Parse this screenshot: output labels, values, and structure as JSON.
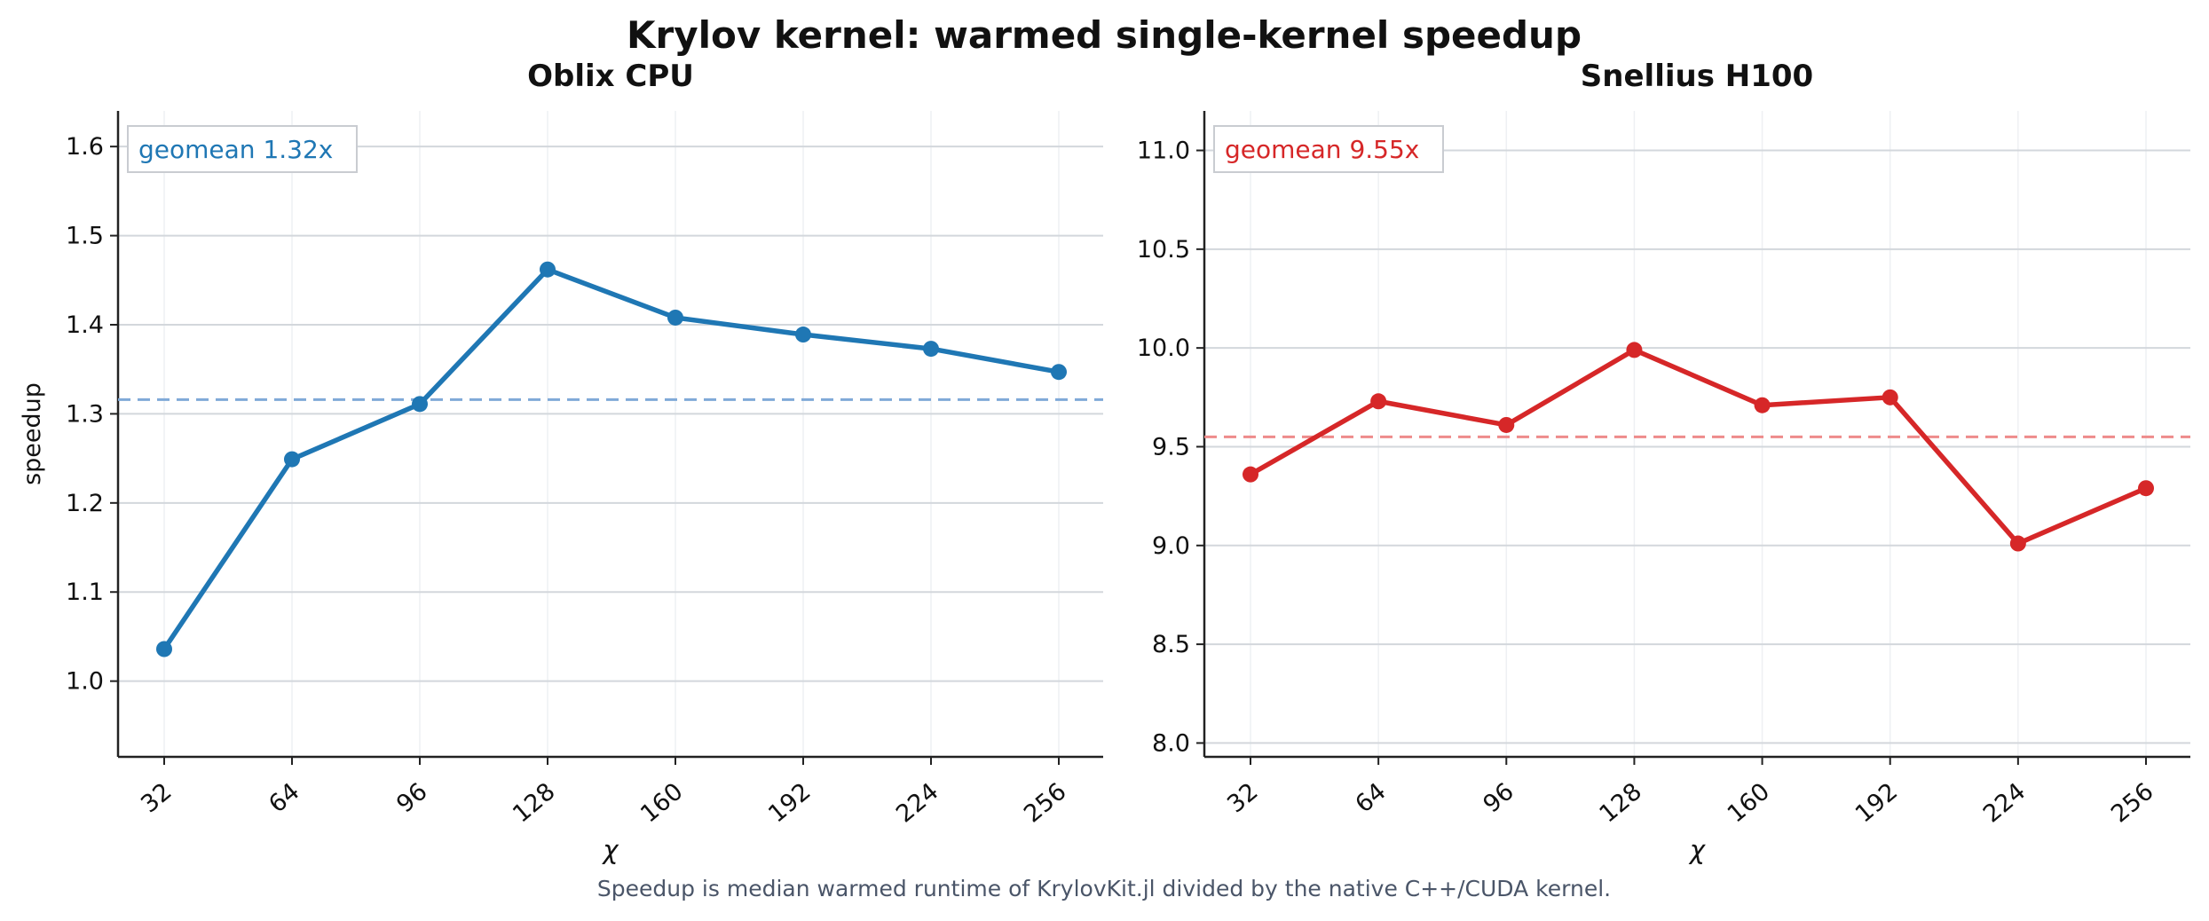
{
  "figure": {
    "title": "Krylov kernel: warmed single-kernel speedup",
    "caption": "Speedup is median warmed runtime of KrylovKit.jl divided by the native C++/CUDA kernel."
  },
  "chart_data": [
    {
      "type": "line",
      "title": "Oblix CPU",
      "xlabel": "χ",
      "ylabel": "speedup",
      "categories": [
        "32",
        "64",
        "96",
        "128",
        "160",
        "192",
        "224",
        "256"
      ],
      "series": [
        {
          "values": [
            1.036,
            1.249,
            1.311,
            1.462,
            1.408,
            1.389,
            1.373,
            1.347
          ],
          "color": "#1f77b4"
        }
      ],
      "reference_line": {
        "value": 1.316,
        "color": "#7fa9d8",
        "style": "dashed"
      },
      "annotation": {
        "text": "geomean 1.32x",
        "color": "#1f77b4",
        "placement": "top-left"
      },
      "ylim": [
        0.915,
        1.64
      ],
      "yticks": [
        1.0,
        1.1,
        1.2,
        1.3,
        1.4,
        1.5,
        1.6
      ],
      "ytick_labels": [
        "1.0",
        "1.1",
        "1.2",
        "1.3",
        "1.4",
        "1.5",
        "1.6"
      ],
      "grid": true
    },
    {
      "type": "line",
      "title": "Snellius H100",
      "xlabel": "χ",
      "ylabel": "",
      "categories": [
        "32",
        "64",
        "96",
        "128",
        "160",
        "192",
        "224",
        "256"
      ],
      "series": [
        {
          "values": [
            9.36,
            9.73,
            9.61,
            9.99,
            9.71,
            9.75,
            9.01,
            9.29
          ],
          "color": "#d62728"
        }
      ],
      "reference_line": {
        "value": 9.55,
        "color": "#ee8b8b",
        "style": "dashed"
      },
      "annotation": {
        "text": "geomean 9.55x",
        "color": "#d62728",
        "placement": "top-left"
      },
      "ylim": [
        7.93,
        11.2
      ],
      "yticks": [
        8.0,
        8.5,
        9.0,
        9.5,
        10.0,
        10.5,
        11.0
      ],
      "ytick_labels": [
        "8.0",
        "8.5",
        "9.0",
        "9.5",
        "10.0",
        "10.5",
        "11.0"
      ],
      "grid": true
    }
  ]
}
